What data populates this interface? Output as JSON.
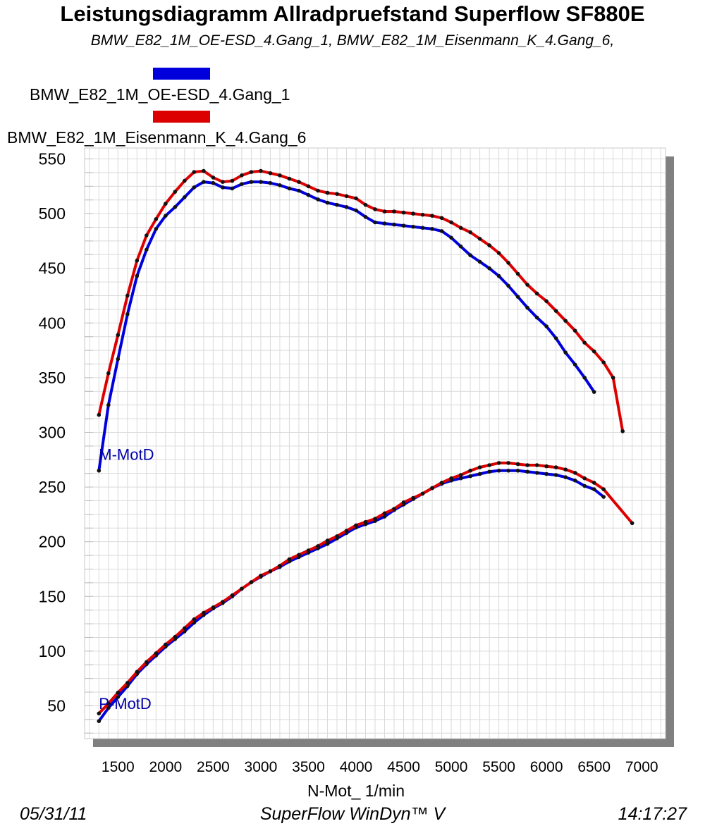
{
  "title": "Leistungsdiagramm Allradpruefstand Superflow SF880E",
  "subtitle": "BMW_E82_1M_OE-ESD_4.Gang_1, BMW_E82_1M_Eisenmann_K_4.Gang_6,",
  "legend": [
    {
      "label": "BMW_E82_1M_OE-ESD_4.Gang_1",
      "color": "#0000dd"
    },
    {
      "label": "BMW_E82_1M_Eisenmann_K_4.Gang_6",
      "color": "#dd0000"
    }
  ],
  "footer": {
    "date": "05/31/11",
    "software": "SuperFlow WinDyn™ V",
    "time": "14:17:27"
  },
  "chart_data": {
    "type": "line",
    "xlabel": "N-Mot_ 1/min",
    "ylabel": "",
    "xlim": [
      1150,
      7250
    ],
    "ylim": [
      20,
      560
    ],
    "xticks": [
      1500,
      2000,
      2500,
      3000,
      3500,
      4000,
      4500,
      5000,
      5500,
      6000,
      6500,
      7000
    ],
    "yticks": [
      50,
      100,
      150,
      200,
      250,
      300,
      350,
      400,
      450,
      500,
      550
    ],
    "grid": true,
    "curve_labels": [
      {
        "text": "M-MotD",
        "x": 1300,
        "y": 275
      },
      {
        "text": "P-MotD",
        "x": 1300,
        "y": 47
      }
    ],
    "x": [
      1300,
      1400,
      1500,
      1600,
      1700,
      1800,
      1900,
      2000,
      2100,
      2200,
      2300,
      2400,
      2500,
      2600,
      2700,
      2800,
      2900,
      3000,
      3100,
      3200,
      3300,
      3400,
      3500,
      3600,
      3700,
      3800,
      3900,
      4000,
      4100,
      4200,
      4300,
      4400,
      4500,
      4600,
      4700,
      4800,
      4900,
      5000,
      5100,
      5200,
      5300,
      5400,
      5500,
      5600,
      5700,
      5800,
      5900,
      6000,
      6100,
      6200,
      6300,
      6400,
      6500,
      6600,
      6700,
      6800,
      6900
    ],
    "series": [
      {
        "name": "BMW_E82_1M_OE-ESD_4.Gang_1",
        "quantity": "M-MotD",
        "color": "#0000dd",
        "values": [
          265,
          325,
          367,
          408,
          443,
          467,
          486,
          498,
          506,
          515,
          524,
          529,
          528,
          524,
          523,
          527,
          529,
          529,
          528,
          526,
          523,
          521,
          517,
          513,
          510,
          508,
          506,
          503,
          497,
          492,
          491,
          490,
          489,
          488,
          487,
          486,
          484,
          478,
          470,
          462,
          456,
          450,
          443,
          434,
          424,
          414,
          405,
          397,
          386,
          373,
          362,
          350,
          337,
          null,
          null,
          null,
          null
        ]
      },
      {
        "name": "BMW_E82_1M_OE-ESD_4.Gang_1",
        "quantity": "P-MotD",
        "color": "#0000dd",
        "values": [
          36,
          48,
          58,
          68,
          79,
          88,
          96,
          104,
          111,
          118,
          126,
          133,
          139,
          144,
          150,
          157,
          163,
          168,
          173,
          177,
          182,
          186,
          190,
          194,
          198,
          203,
          208,
          213,
          216,
          219,
          223,
          229,
          234,
          239,
          244,
          249,
          253,
          256,
          258,
          260,
          262,
          264,
          265,
          265,
          265,
          264,
          263,
          262,
          261,
          259,
          256,
          251,
          248,
          241,
          null,
          null,
          null
        ]
      },
      {
        "name": "BMW_E82_1M_Eisenmann_K_4.Gang_6",
        "quantity": "M-MotD",
        "color": "#dd0000",
        "values": [
          316,
          354,
          389,
          425,
          457,
          480,
          495,
          509,
          520,
          530,
          538,
          539,
          533,
          529,
          530,
          535,
          538,
          539,
          537,
          535,
          532,
          529,
          525,
          521,
          519,
          518,
          516,
          514,
          508,
          504,
          502,
          502,
          501,
          500,
          499,
          498,
          496,
          492,
          487,
          483,
          477,
          471,
          464,
          455,
          445,
          435,
          427,
          420,
          411,
          402,
          393,
          382,
          374,
          364,
          350,
          301,
          null
        ]
      },
      {
        "name": "BMW_E82_1M_Eisenmann_K_4.Gang_6",
        "quantity": "P-MotD",
        "color": "#dd0000",
        "values": [
          43,
          52,
          62,
          71,
          81,
          90,
          98,
          106,
          113,
          121,
          129,
          135,
          140,
          145,
          151,
          157,
          163,
          169,
          173,
          178,
          184,
          188,
          192,
          196,
          201,
          205,
          210,
          215,
          218,
          221,
          226,
          230,
          236,
          240,
          244,
          249,
          254,
          258,
          261,
          265,
          268,
          270,
          272,
          272,
          271,
          270,
          270,
          269,
          268,
          266,
          263,
          258,
          254,
          248,
          null,
          null,
          217
        ]
      }
    ]
  }
}
